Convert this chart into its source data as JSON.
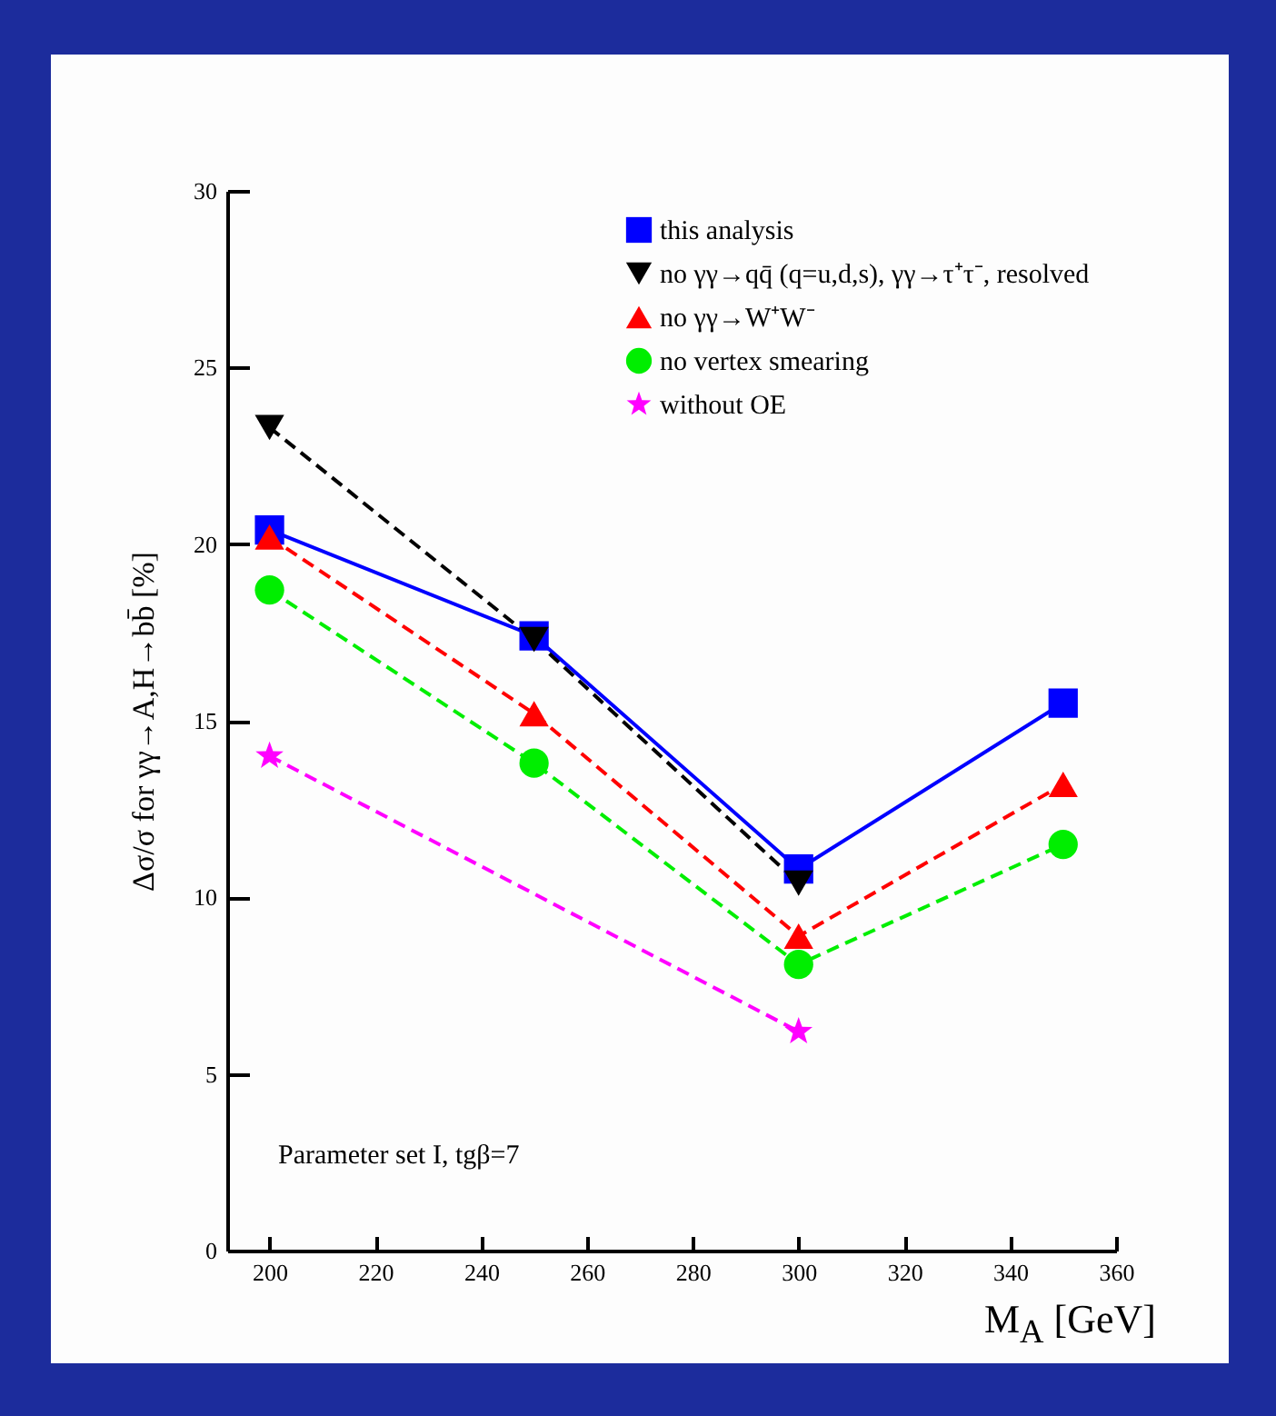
{
  "chart_data": {
    "type": "line",
    "xlabel": "M$_{A}$ [GeV]",
    "ylabel": "Δσ/σ   for   γγ→A,H→bb̄   [%]",
    "annotations": [
      "Parameter set I, tgβ=7"
    ],
    "xlim": [
      192,
      360
    ],
    "xticks": [
      200,
      220,
      240,
      260,
      280,
      300,
      320,
      340,
      360
    ],
    "ylim": [
      0,
      30
    ],
    "yticks": [
      0,
      5,
      10,
      15,
      20,
      25,
      30
    ],
    "legend": "top right",
    "grid": false,
    "series": [
      {
        "name": "this analysis",
        "color": "#0000ff",
        "marker": "square",
        "line_style": "solid",
        "x": [
          200,
          250,
          300,
          350
        ],
        "values": [
          20.4,
          17.4,
          10.8,
          15.5
        ]
      },
      {
        "name": "no γγ→qq̄ (q=u,d,s), γγ→τ⁺τ⁻, resolved",
        "color": "#000000",
        "marker": "triangle-down",
        "line_style": "dashed",
        "x": [
          200,
          250,
          300
        ],
        "values": [
          23.3,
          17.3,
          10.4
        ]
      },
      {
        "name": "no γγ→W⁺W⁻",
        "color": "#ff0000",
        "marker": "triangle",
        "line_style": "dashed",
        "x": [
          200,
          250,
          300,
          350
        ],
        "values": [
          20.2,
          15.2,
          8.9,
          13.2
        ]
      },
      {
        "name": "no vertex smearing",
        "color": "#00ee00",
        "marker": "circle",
        "line_style": "dashed",
        "x": [
          200,
          250,
          300,
          350
        ],
        "values": [
          18.7,
          13.8,
          8.1,
          11.5
        ]
      },
      {
        "name": "without OE",
        "color": "#ff00ff",
        "marker": "star",
        "line_style": "dashed",
        "x": [
          200,
          300
        ],
        "values": [
          14.0,
          6.2
        ]
      }
    ]
  }
}
